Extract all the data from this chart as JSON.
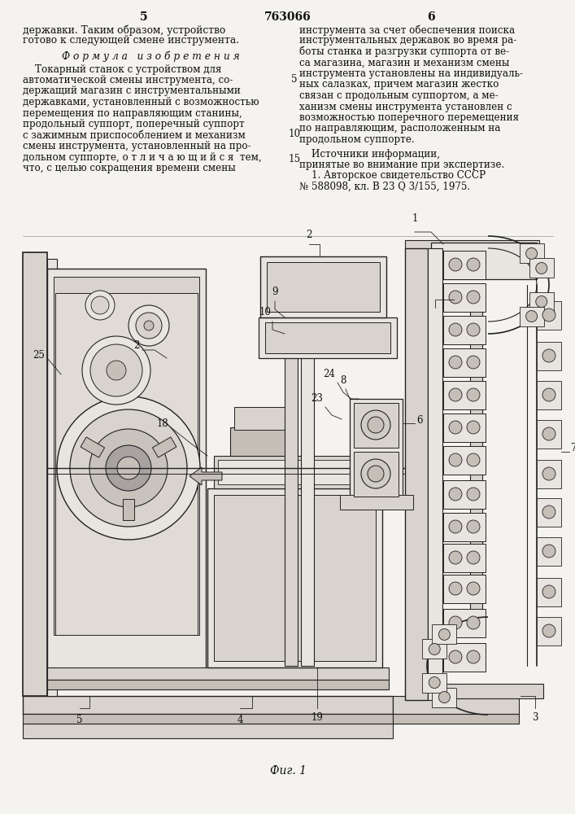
{
  "page_number_left": "5",
  "patent_number": "763066",
  "page_number_right": "6",
  "left_col_line1": "державки. Таким образом, устройство",
  "left_col_line2": "готово к следующей смене инструмента.",
  "formula_header": "Ф о р м у л а   и з о б р е т е н и я",
  "left_formula_lines": [
    "    Токарный станок с устройством для",
    "автоматической смены инструмента, со-",
    "держащий магазин с инструментальными",
    "державками, установленный с возможностью",
    "перемещения по направляющим станины,",
    "продольный суппорт, поперечный суппорт",
    "с зажимным приспособлением и механизм",
    "смены инструмента, установленный на про-",
    "дольном суппорте, о т л и ч а ю щ и й с я  тем,",
    "что, с целью сокращения времени смены"
  ],
  "right_top_lines": [
    "инструмента за счет обеспечения поиска",
    "инструментальных державок во время ра-",
    "боты станка и разгрузки суппорта от ве-",
    "са магазина, магазин и механизм смены",
    "инструмента установлены на индивидуаль-",
    "ных салазках, причем магазин жестко",
    "связан с продольным суппортом, а ме-",
    "ханизм смены инструмента установлен с",
    "возможностью поперечного перемещения",
    "по направляющим, расположенным на",
    "продольном суппорте."
  ],
  "sources_lines": [
    "    Источники информации,",
    "принятые во внимание при экспертизе.",
    "    1. Авторское свидетельство СССР",
    "№ 588098, кл. В 23 Q 3/155, 1975."
  ],
  "line_nums": {
    "5": 4,
    "10": 9,
    "15": 14
  },
  "fig_caption": "Фиг. 1",
  "bg_color": "#f5f3ef",
  "text_color": "#111111",
  "draw_color": "#222222",
  "fill_light": "#e8e4df",
  "fill_mid": "#d8d3cd",
  "fill_dark": "#c5bfb8"
}
